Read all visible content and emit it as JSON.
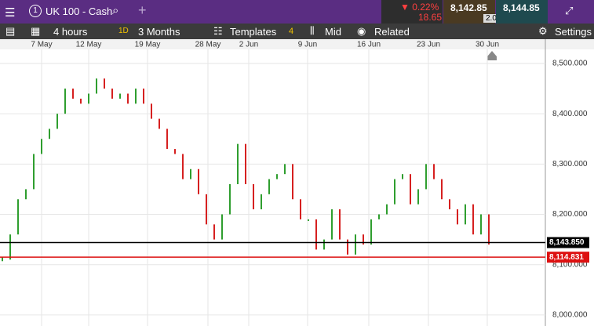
{
  "header": {
    "instrument_number": "1",
    "instrument": "UK 100 - Cash",
    "change_pct": "▼ 0.22%",
    "change_pts": "18.65",
    "sell": "8,142.85",
    "spread": "2.00",
    "buy": "8,144.85"
  },
  "toolbar": {
    "interval": "4 hours",
    "range_badge": "1D",
    "range": "3 Months",
    "templates": "Templates",
    "templates_count": "4",
    "price_type": "Mid",
    "related": "Related",
    "settings": "Settings"
  },
  "chart_data": {
    "type": "candle",
    "up_color": "#2f9e2f",
    "down_color": "#d62020",
    "values": [
      8110,
      8160,
      8230,
      8250,
      8320,
      8350,
      8370,
      8400,
      8450,
      8430,
      8420,
      8440,
      8470,
      8450,
      8430,
      8440,
      8420,
      8450,
      8420,
      8390,
      8370,
      8330,
      8320,
      8270,
      8290,
      8240,
      8180,
      8150,
      8200,
      8260,
      8340,
      8260,
      8210,
      8240,
      8270,
      8280,
      8300,
      8230,
      8190,
      8190,
      8130,
      8150,
      8210,
      8150,
      8120,
      8160,
      8140,
      8190,
      8200,
      8220,
      8270,
      8280,
      8220,
      8250,
      8300,
      8270,
      8230,
      8210,
      8180,
      8220,
      8160,
      8200,
      8140
    ],
    "xlim": [
      0,
      69.2
    ],
    "xticks": [
      {
        "value": 5,
        "label": "7 May"
      },
      {
        "value": 11,
        "label": "12 May"
      },
      {
        "value": 18.5,
        "label": "19 May"
      },
      {
        "value": 26.2,
        "label": "28 May"
      },
      {
        "value": 31.4,
        "label": "2 Jun"
      },
      {
        "value": 38.9,
        "label": "9 Jun"
      },
      {
        "value": 46.7,
        "label": "16 Jun"
      },
      {
        "value": 54.3,
        "label": "23 Jun"
      },
      {
        "value": 61.8,
        "label": "30 Jun"
      }
    ],
    "ylim": [
      7978,
      8528
    ],
    "yticks": [
      {
        "value": 8000,
        "label": "8,000.000"
      },
      {
        "value": 8100,
        "label": "8,100.000"
      },
      {
        "value": 8200,
        "label": "8,200.000"
      },
      {
        "value": 8300,
        "label": "8,300.000"
      },
      {
        "value": 8400,
        "label": "8,400.000"
      },
      {
        "value": 8500,
        "label": "8,500.000"
      }
    ],
    "grid": true,
    "lines": [
      {
        "value": 8143.85,
        "label": "8,143.850",
        "color": "#000000"
      },
      {
        "value": 8114.831,
        "label": "8,114.831",
        "color": "#dd1111"
      }
    ]
  }
}
